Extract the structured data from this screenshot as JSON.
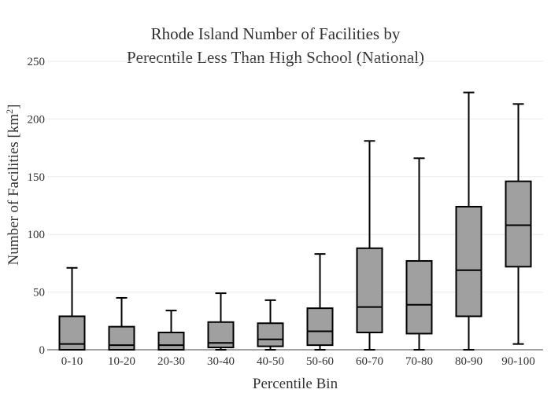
{
  "chart_data": {
    "type": "box",
    "title_lines": [
      "Rhode Island Number of Facilities by",
      "Perecntile Less Than High School (National)"
    ],
    "xlabel": "Percentile Bin",
    "ylabel_main": "Number of Facilities  [km",
    "ylabel_sup": "2",
    "ylabel_end": "]",
    "ylim": [
      0,
      250
    ],
    "yticks": [
      0,
      50,
      100,
      150,
      200,
      250
    ],
    "grid": true,
    "legend": "none",
    "colors": {
      "box_fill": "#a0a0a0",
      "box_stroke": "#000000",
      "grid": "#ebebeb"
    },
    "categories": [
      "0-10",
      "10-20",
      "20-30",
      "30-40",
      "40-50",
      "50-60",
      "60-70",
      "70-80",
      "80-90",
      "90-100"
    ],
    "boxes": [
      {
        "min": 0,
        "q1": 0,
        "median": 5,
        "q3": 29,
        "max": 71
      },
      {
        "min": 0,
        "q1": 0,
        "median": 4,
        "q3": 20,
        "max": 45
      },
      {
        "min": 0,
        "q1": 0,
        "median": 4,
        "q3": 15,
        "max": 34
      },
      {
        "min": 0,
        "q1": 2,
        "median": 6,
        "q3": 24,
        "max": 49
      },
      {
        "min": 0,
        "q1": 3,
        "median": 9,
        "q3": 23,
        "max": 43
      },
      {
        "min": 0,
        "q1": 4,
        "median": 16,
        "q3": 36,
        "max": 83
      },
      {
        "min": 0,
        "q1": 15,
        "median": 37,
        "q3": 88,
        "max": 181
      },
      {
        "min": 0,
        "q1": 14,
        "median": 39,
        "q3": 77,
        "max": 166
      },
      {
        "min": 0,
        "q1": 29,
        "median": 69,
        "q3": 124,
        "max": 223
      },
      {
        "min": 5,
        "q1": 72,
        "median": 108,
        "q3": 146,
        "max": 213
      }
    ]
  }
}
